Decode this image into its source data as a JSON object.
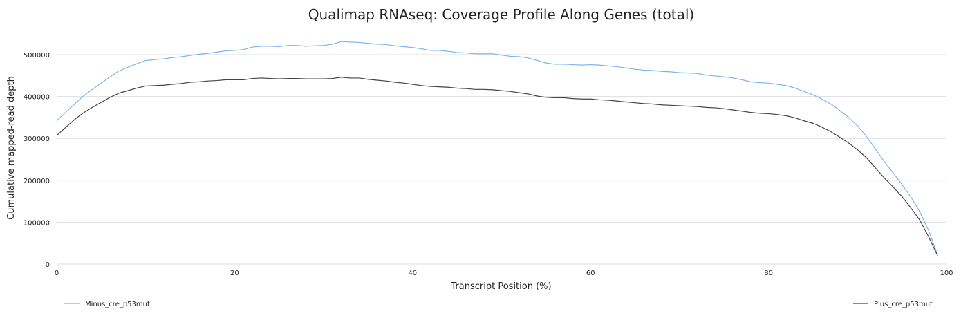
{
  "chart_data": {
    "type": "line",
    "title": "Qualimap RNAseq: Coverage Profile Along Genes (total)",
    "xlabel": "Transcript Position (%)",
    "ylabel": "Cumulative mapped-read depth",
    "xlim": [
      0,
      100
    ],
    "ylim": [
      0,
      500000
    ],
    "x_ticks": [
      "0",
      "20",
      "40",
      "60",
      "80",
      "100"
    ],
    "y_ticks": [
      "0",
      "100000",
      "200000",
      "300000",
      "400000",
      "500000"
    ],
    "grid": "horizontal",
    "legend_placement": "bottom",
    "x": [
      0,
      1,
      2,
      3,
      4,
      5,
      6,
      7,
      8,
      9,
      10,
      11,
      12,
      13,
      14,
      15,
      16,
      17,
      18,
      19,
      20,
      21,
      22,
      23,
      24,
      25,
      26,
      27,
      28,
      29,
      30,
      31,
      32,
      33,
      34,
      35,
      36,
      37,
      38,
      39,
      40,
      41,
      42,
      43,
      44,
      45,
      46,
      47,
      48,
      49,
      50,
      51,
      52,
      53,
      54,
      55,
      56,
      57,
      58,
      59,
      60,
      61,
      62,
      63,
      64,
      65,
      66,
      67,
      68,
      69,
      70,
      71,
      72,
      73,
      74,
      75,
      76,
      77,
      78,
      79,
      80,
      81,
      82,
      83,
      84,
      85,
      86,
      87,
      88,
      89,
      90,
      91,
      92,
      93,
      94,
      95,
      96,
      97,
      98,
      99
    ],
    "series": [
      {
        "name": "Minus_cre_p53mut",
        "color": "#7cb5ec",
        "values": [
          342000,
          362000,
          382000,
          401000,
          417000,
          432000,
          447000,
          461000,
          470000,
          478000,
          486000,
          488000,
          490000,
          493000,
          495000,
          498000,
          501000,
          503000,
          506000,
          509000,
          510000,
          512000,
          518000,
          520000,
          520000,
          519000,
          522000,
          522000,
          520000,
          521000,
          522000,
          525000,
          531000,
          530000,
          529000,
          527000,
          525000,
          524000,
          521000,
          519000,
          517000,
          514000,
          510000,
          510000,
          508000,
          505000,
          504000,
          502000,
          502000,
          502000,
          499000,
          496000,
          495000,
          492000,
          486000,
          480000,
          477000,
          477000,
          476000,
          475000,
          476000,
          475000,
          473000,
          471000,
          468000,
          465000,
          463000,
          462000,
          460000,
          459000,
          457000,
          456000,
          455000,
          451000,
          449000,
          447000,
          444000,
          440000,
          435000,
          433000,
          432000,
          429000,
          426000,
          420000,
          412000,
          404000,
          394000,
          382000,
          367000,
          350000,
          330000,
          305000,
          275000,
          245000,
          218000,
          190000,
          160000,
          125000,
          80000,
          22000
        ]
      },
      {
        "name": "Plus_cre_p53mut",
        "color": "#434348",
        "values": [
          307000,
          326000,
          345000,
          361000,
          374000,
          386000,
          398000,
          408000,
          414000,
          420000,
          425000,
          426000,
          427000,
          429000,
          431000,
          434000,
          435000,
          437000,
          438000,
          440000,
          440000,
          440000,
          443000,
          444000,
          443000,
          442000,
          443000,
          443000,
          442000,
          442000,
          442000,
          443000,
          446000,
          444000,
          444000,
          441000,
          439000,
          437000,
          434000,
          432000,
          429000,
          426000,
          424000,
          423000,
          422000,
          420000,
          419000,
          417000,
          417000,
          416000,
          414000,
          412000,
          409000,
          406000,
          401000,
          398000,
          397000,
          397000,
          395000,
          394000,
          394000,
          392000,
          391000,
          389000,
          387000,
          385000,
          383000,
          382000,
          380000,
          379000,
          378000,
          377000,
          376000,
          374000,
          373000,
          371000,
          368000,
          365000,
          362000,
          360000,
          359000,
          357000,
          354000,
          349000,
          342000,
          336000,
          327000,
          316000,
          303000,
          289000,
          273000,
          254000,
          230000,
          206000,
          184000,
          161000,
          134000,
          105000,
          65000,
          20000
        ]
      }
    ]
  }
}
